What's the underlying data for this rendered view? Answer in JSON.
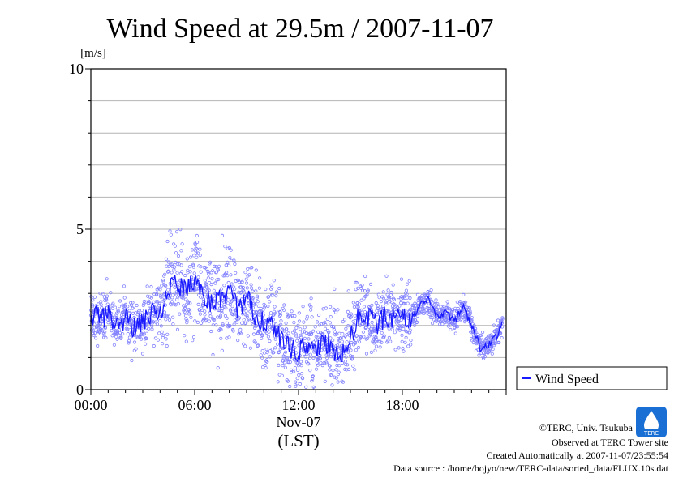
{
  "colors": {
    "series": "#1a1aff",
    "points": "#8080ff",
    "grid": "#b4b4b4",
    "axis": "#000000",
    "logo": "#1a6fd4"
  },
  "icons": {
    "logo": "terc-logo-icon"
  },
  "chart_data": {
    "type": "line",
    "title": "Wind Speed at 29.5m / 2007-11-07",
    "ylabel": "[m/s]",
    "xlabel": "(LST)",
    "date_label": "Nov-07",
    "xlim": [
      0,
      24
    ],
    "ylim": [
      0,
      10
    ],
    "x_ticks": [
      {
        "value": 0,
        "label": "00:00"
      },
      {
        "value": 6,
        "label": "06:00"
      },
      {
        "value": 12,
        "label": "12:00"
      },
      {
        "value": 18,
        "label": "18:00"
      }
    ],
    "y_ticks": [
      {
        "value": 0,
        "label": "0"
      },
      {
        "value": 5,
        "label": "5"
      },
      {
        "value": 10,
        "label": "10"
      }
    ],
    "grid": true,
    "legend": {
      "placement": "right",
      "entries": [
        "Wind Speed"
      ]
    },
    "series": [
      {
        "name": "Wind Speed",
        "x": [
          0,
          0.5,
          1,
          1.5,
          2,
          2.5,
          3,
          3.5,
          4,
          4.5,
          5,
          5.5,
          6,
          6.5,
          7,
          7.5,
          8,
          8.5,
          9,
          9.5,
          10,
          10.5,
          11,
          11.5,
          12,
          12.5,
          13,
          13.5,
          14,
          14.5,
          15,
          15.5,
          16,
          16.5,
          17,
          17.5,
          18,
          18.5,
          19,
          19.5,
          20,
          20.5,
          21,
          21.5,
          22,
          22.5,
          23,
          23.5,
          23.8
        ],
        "values": [
          2.4,
          2.2,
          2.3,
          2.0,
          2.2,
          1.9,
          2.1,
          2.4,
          2.3,
          3.1,
          3.3,
          3.0,
          3.4,
          3.0,
          2.7,
          2.8,
          3.0,
          2.5,
          2.9,
          2.3,
          2.1,
          2.0,
          1.6,
          1.3,
          1.2,
          1.4,
          1.1,
          1.5,
          1.3,
          1.0,
          1.6,
          2.3,
          2.3,
          2.0,
          2.3,
          2.2,
          2.4,
          2.2,
          2.6,
          2.8,
          2.3,
          2.4,
          2.1,
          2.6,
          2.0,
          1.3,
          1.4,
          1.7,
          2.2
        ]
      }
    ]
  },
  "footer": {
    "copyright": "©TERC, Univ. Tsukuba",
    "observed": "Observed at TERC Tower site",
    "created": "Created Automatically at 2007-11-07/23:55:54",
    "source": "Data source : /home/hojyo/new/TERC-data/sorted_data/FLUX.10s.dat"
  }
}
